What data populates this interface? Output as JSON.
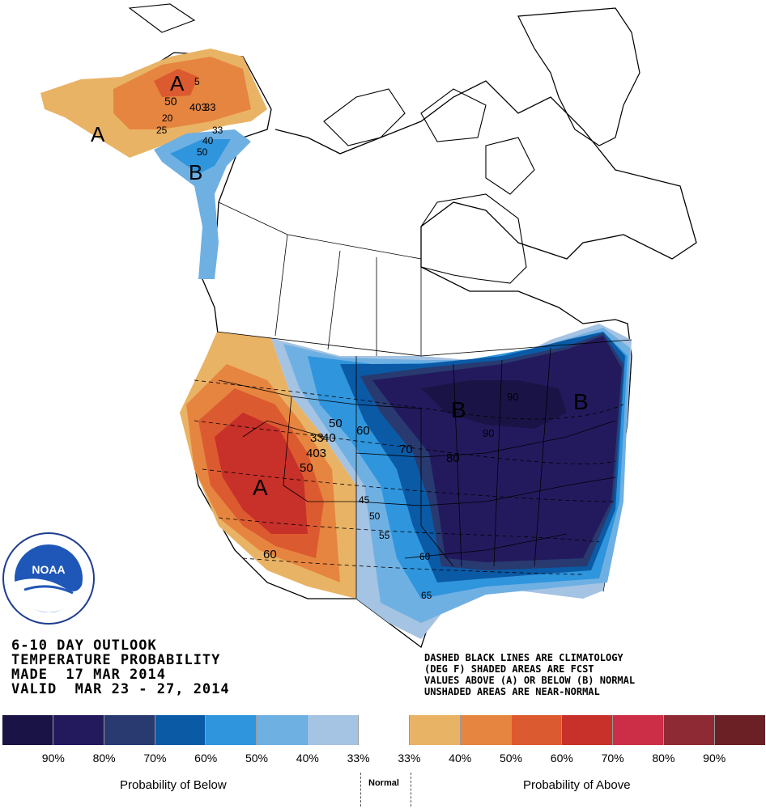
{
  "title": {
    "line1": "6-10 DAY OUTLOOK",
    "line2": "TEMPERATURE PROBABILITY",
    "line3": "MADE  17 MAR 2014",
    "line4": "VALID  MAR 23 - 27, 2014"
  },
  "notes": {
    "line1": "DASHED BLACK LINES ARE CLIMATOLOGY",
    "line2": "(DEG F) SHADED AREAS ARE FCST",
    "line3": "VALUES ABOVE (A) OR BELOW (B) NORMAL",
    "line4": "UNSHADED AREAS ARE NEAR-NORMAL"
  },
  "logo": {
    "text": "NOAA",
    "ring_text": "NATIONAL OCEANIC AND ATMOSPHERIC ADMINISTRATION · U.S. DEPARTMENT OF COMMERCE"
  },
  "legend": {
    "colors": [
      "#1a1446",
      "#231a5e",
      "#283a70",
      "#0a5aa6",
      "#2f95dd",
      "#6fb0e3",
      "#a5c3e3",
      "#ffffff",
      "#e9b366",
      "#e68540",
      "#dc5a30",
      "#c8302a",
      "#cc2e48",
      "#8e2a34",
      "#6a2024"
    ],
    "percent_labels": [
      "90%",
      "80%",
      "70%",
      "60%",
      "50%",
      "40%",
      "33%",
      "33%",
      "40%",
      "50%",
      "60%",
      "70%",
      "80%",
      "90%"
    ],
    "below_title": "Probability of Below",
    "normal_title": "Normal",
    "above_title": "Probability of Above"
  },
  "map_labels": {
    "A": "A",
    "B": "B",
    "contours": [
      "60",
      "50",
      "40",
      "33",
      "25",
      "20",
      "5",
      "70",
      "80",
      "90",
      "45",
      "55",
      "65",
      "403",
      "33"
    ]
  }
}
